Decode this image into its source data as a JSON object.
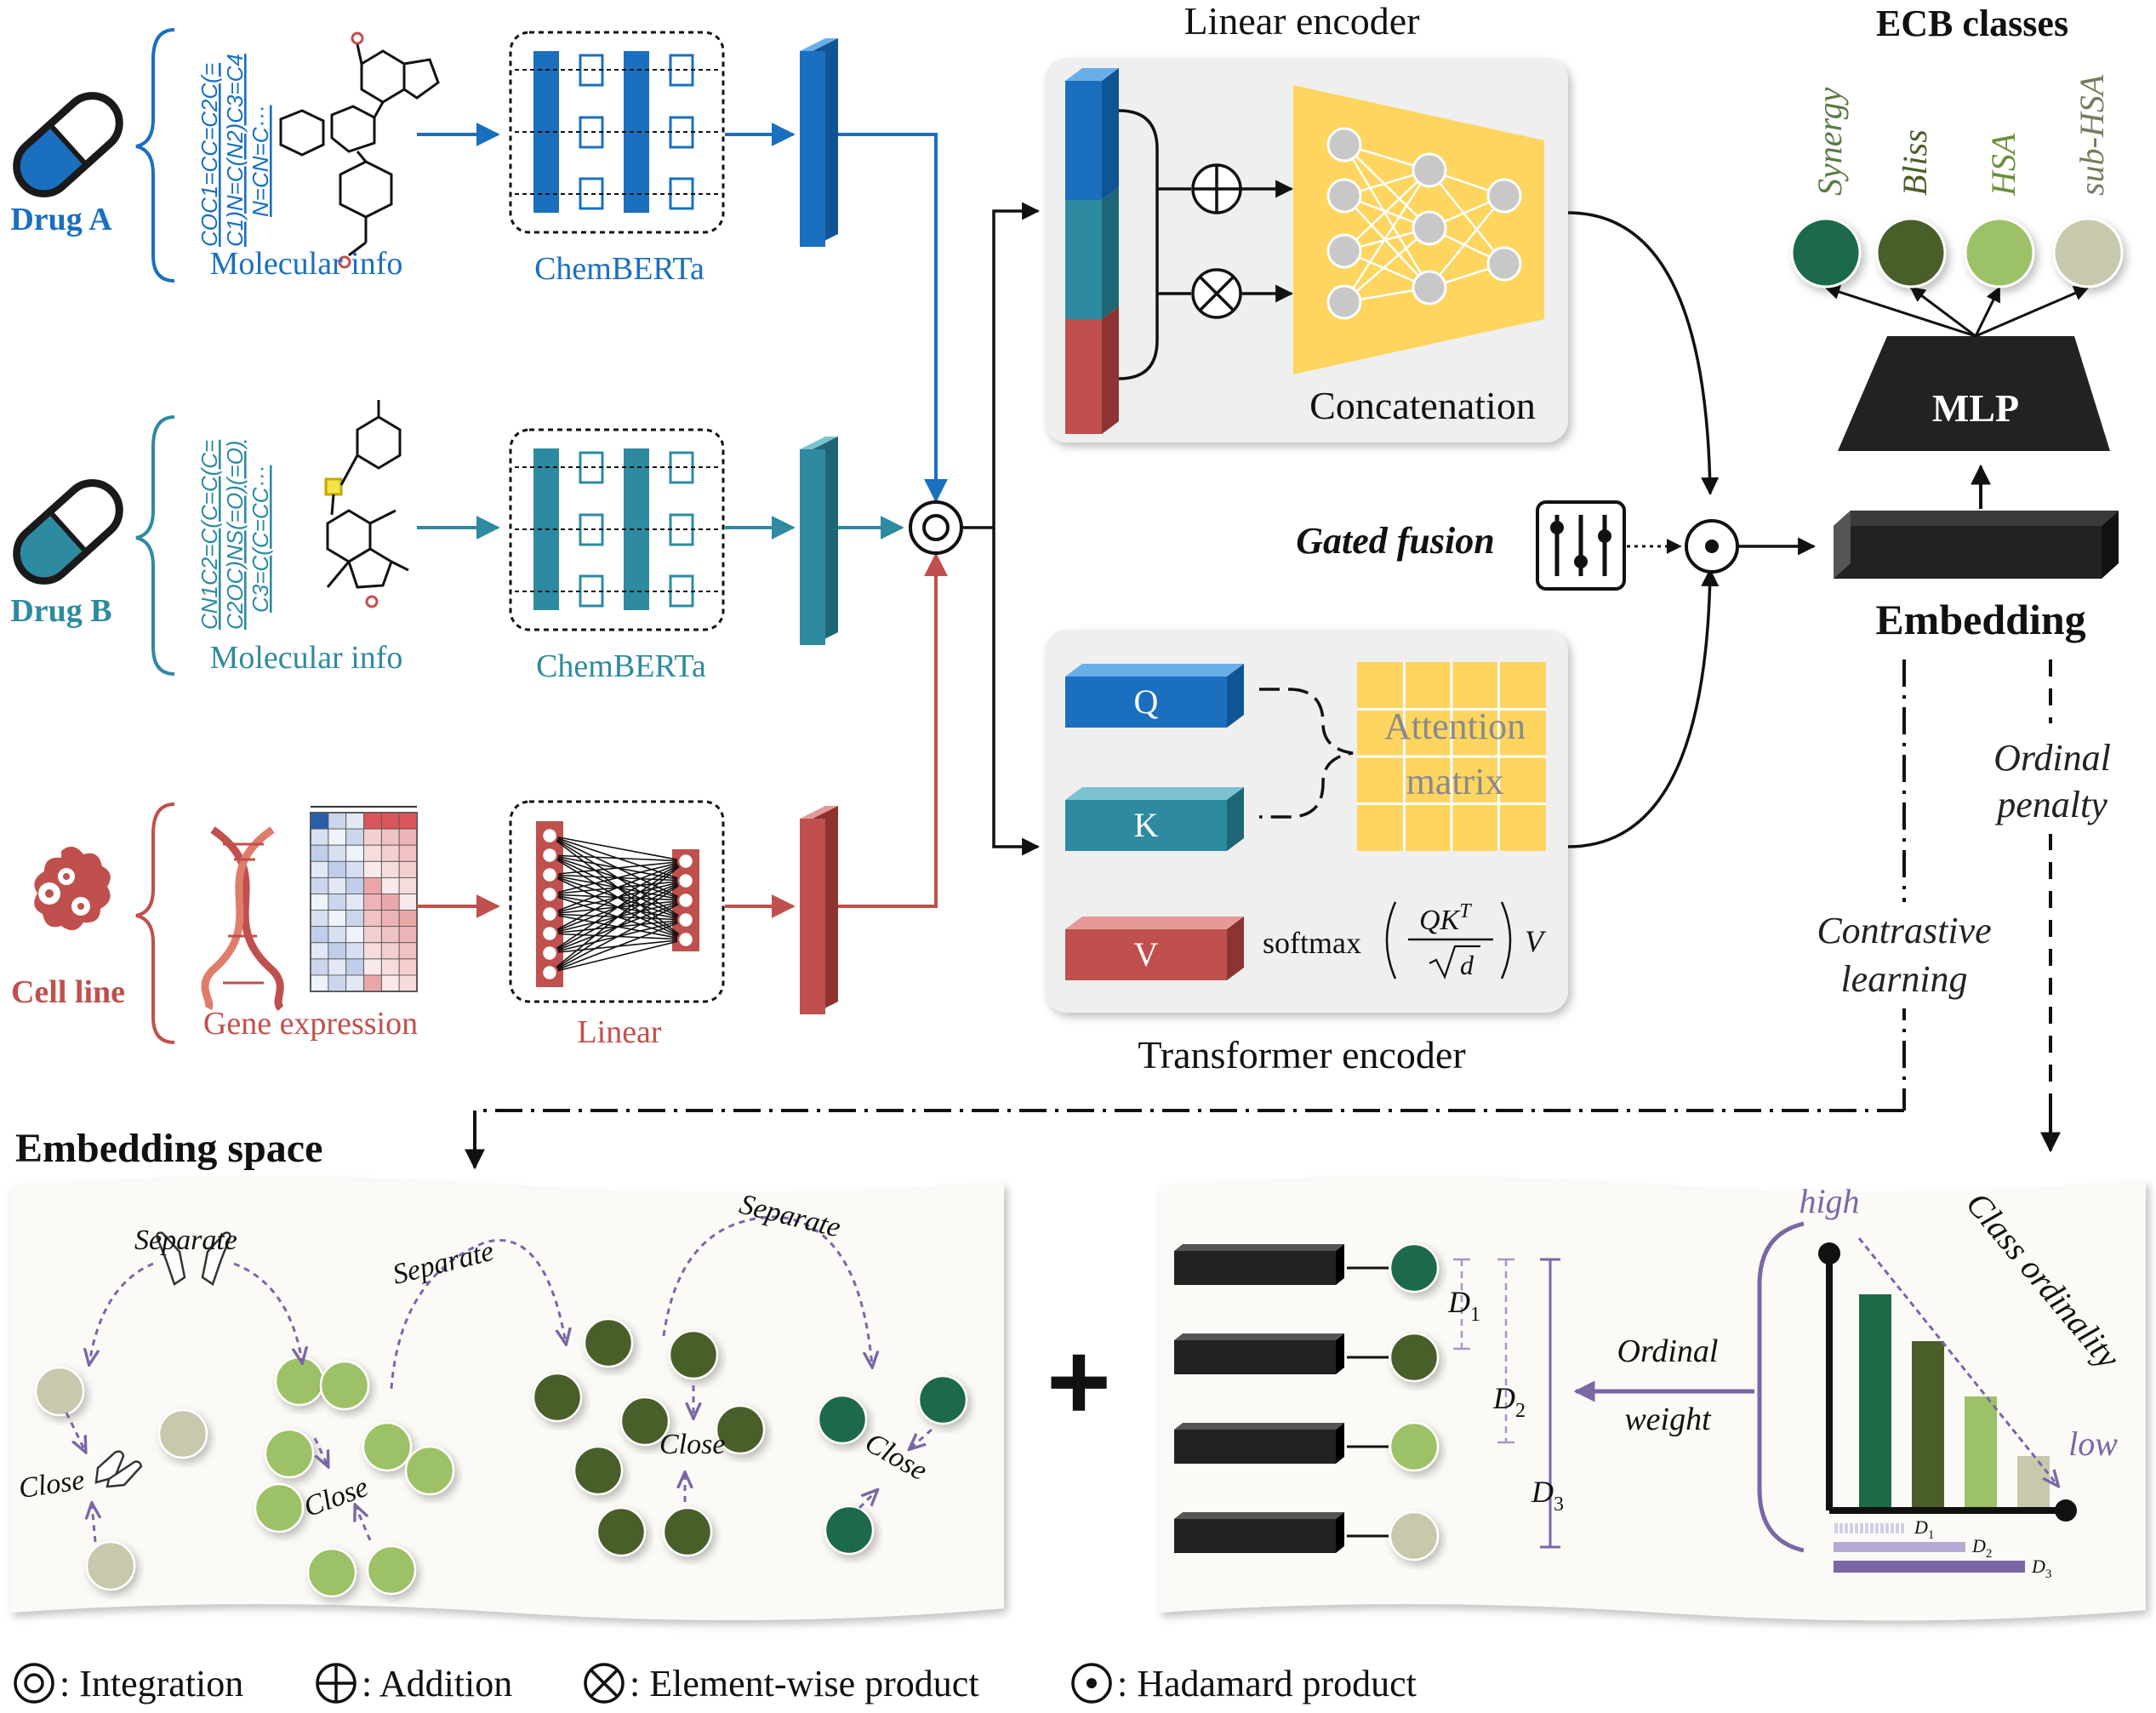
{
  "colors": {
    "drug_a": "#1a6fbf",
    "drug_b": "#2e8aa0",
    "cell": "#c0504d",
    "synergy": "#1e6a48",
    "bliss": "#4a5e2a",
    "hsa": "#9dc166",
    "sub_hsa": "#c8c8ad",
    "purple": "#7b66a6",
    "yellow": "#fdd55f",
    "panel": "#efefef",
    "embed_bg": "#fcfaf6"
  },
  "inputs": {
    "drug_a": {
      "label": "Drug A",
      "smiles": [
        "COC1=CC=C2C(=",
        "C1)N=C(N2)C3=C4",
        "N=CN=C···"
      ],
      "info_label": "Molecular info",
      "encoder_label": "ChemBERTa"
    },
    "drug_b": {
      "label": "Drug B",
      "smiles": [
        "CN1C2=C(C=C(C=",
        "C2OC)NS(=O)(=O)",
        "C3=C(C=CC···"
      ],
      "info_label": "Molecular info",
      "encoder_label": "ChemBERTa"
    },
    "cell_line": {
      "label": "Cell line",
      "info_label": "Gene expression",
      "encoder_label": "Linear"
    }
  },
  "linear_encoder": {
    "title": "Linear encoder",
    "ops": [
      "⊕",
      "⊗"
    ],
    "concat_label": "Concatenation"
  },
  "transformer_encoder": {
    "title": "Transformer encoder",
    "q": "Q",
    "k": "K",
    "v": "V",
    "attention_label": [
      "Attention",
      "matrix"
    ],
    "formula": {
      "softmax": "softmax",
      "numerator": "QK",
      "superscript": "T",
      "denominator": "d",
      "v": "V"
    }
  },
  "fusion": {
    "gated_label": "Gated fusion"
  },
  "ecb": {
    "title": "ECB classes",
    "classes": [
      "Synergy",
      "Bliss",
      "HSA",
      "sub-HSA"
    ],
    "mlp_label": "MLP",
    "embedding_label": "Embedding"
  },
  "losses": {
    "contrastive": [
      "Contrastive",
      "learning"
    ],
    "ordinal": [
      "Ordinal",
      "penalty"
    ]
  },
  "embedding_space": {
    "title": "Embedding space",
    "separate": [
      "Separate",
      "Separate",
      "Separate"
    ],
    "close": [
      "Close",
      "Close",
      "Close",
      "Close"
    ]
  },
  "plus_sign": "+",
  "ordinal_panel": {
    "d_labels": [
      "D",
      "D",
      "D"
    ],
    "d_subs": [
      "1",
      "2",
      "3"
    ],
    "ordinal_weight": [
      "Ordinal",
      "weight"
    ],
    "high": "high",
    "low": "low",
    "class_ordinality": "Class ordinality"
  },
  "legend": [
    {
      "symbol": "integration-icon",
      "text": ": Integration"
    },
    {
      "symbol": "addition-icon",
      "text": ": Addition"
    },
    {
      "symbol": "element-product-icon",
      "text": ": Element-wise product"
    },
    {
      "symbol": "hadamard-icon",
      "text": ": Hadamard product"
    }
  ]
}
